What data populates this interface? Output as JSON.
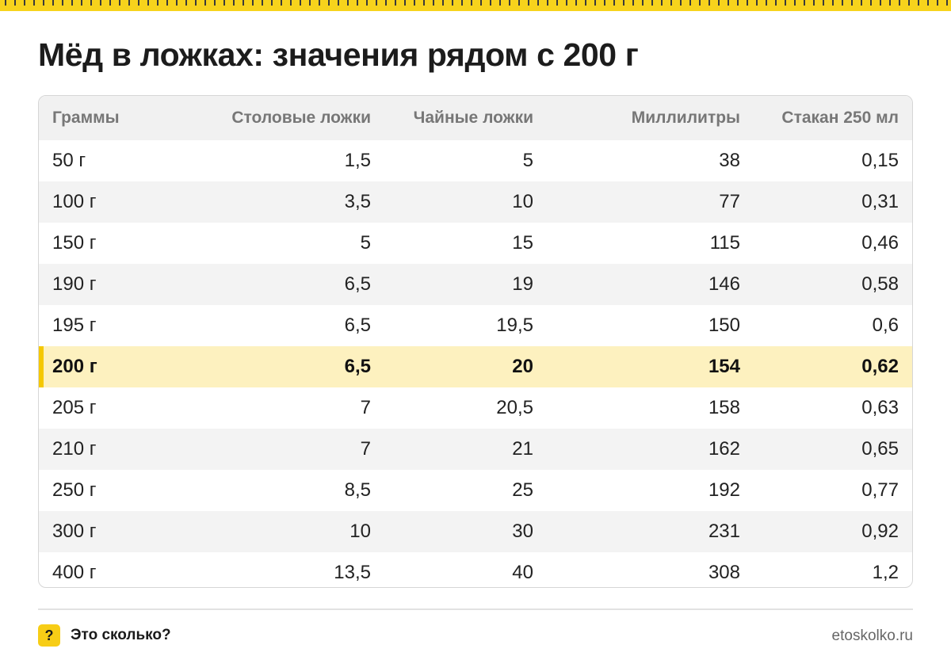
{
  "title": "Мёд в ложках: значения рядом с 200 г",
  "table": {
    "headers": [
      "Граммы",
      "Столовые ложки",
      "Чайные ложки",
      "Миллилитры",
      "Стакан 250 мл"
    ],
    "rows": [
      [
        "50 г",
        "1,5",
        "5",
        "38",
        "0,15"
      ],
      [
        "100 г",
        "3,5",
        "10",
        "77",
        "0,31"
      ],
      [
        "150 г",
        "5",
        "15",
        "115",
        "0,46"
      ],
      [
        "190 г",
        "6,5",
        "19",
        "146",
        "0,58"
      ],
      [
        "195 г",
        "6,5",
        "19,5",
        "150",
        "0,6"
      ],
      [
        "200 г",
        "6,5",
        "20",
        "154",
        "0,62"
      ],
      [
        "205 г",
        "7",
        "20,5",
        "158",
        "0,63"
      ],
      [
        "210 г",
        "7",
        "21",
        "162",
        "0,65"
      ],
      [
        "250 г",
        "8,5",
        "25",
        "192",
        "0,77"
      ],
      [
        "300 г",
        "10",
        "30",
        "231",
        "0,92"
      ],
      [
        "400 г",
        "13,5",
        "40",
        "308",
        "1,2"
      ]
    ],
    "highlighted_row": 5
  },
  "footer": {
    "badge_glyph": "?",
    "brand": "Это сколько?",
    "site": "etoskolko.ru"
  },
  "colors": {
    "accent_yellow": "#f7d31c",
    "highlight_row": "#fdf1bf",
    "highlight_bar": "#f5c800"
  }
}
